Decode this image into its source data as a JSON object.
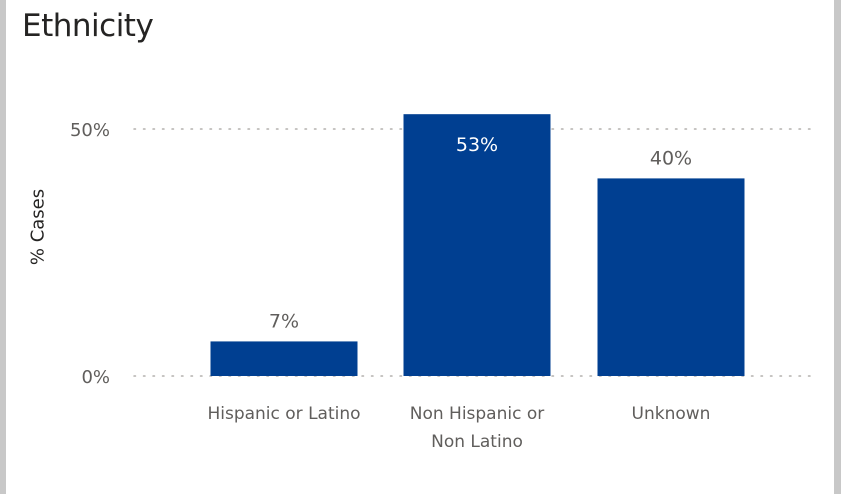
{
  "chart_data": {
    "type": "bar",
    "title": "Ethnicity",
    "ylabel": "% Cases",
    "xlabel": "",
    "categories": [
      "Hispanic or Latino",
      "Non Hispanic or Non Latino",
      "Unknown"
    ],
    "category_label_lines": [
      [
        "Hispanic or Latino"
      ],
      [
        "Non Hispanic or",
        "Non Latino"
      ],
      [
        "Unknown"
      ]
    ],
    "values": [
      7,
      53,
      40
    ],
    "data_labels": [
      "7%",
      "53%",
      "40%"
    ],
    "ylim": [
      0,
      53
    ],
    "yticks": [
      0,
      50
    ],
    "ytick_labels": [
      "0%",
      "50%"
    ],
    "grid": true,
    "bar_color": "#003f91",
    "label_color_inside": "#ffffff",
    "label_color_outside": "#605e5c"
  }
}
